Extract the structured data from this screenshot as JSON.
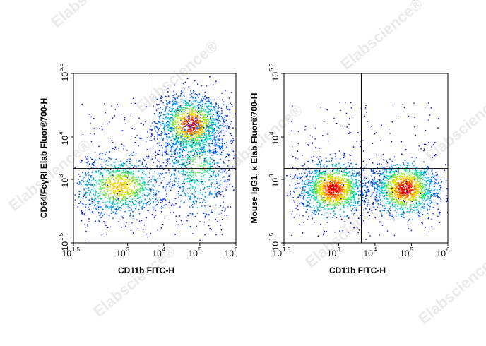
{
  "watermark": "Elabscience®",
  "chart_data": [
    {
      "type": "scatter",
      "subtype": "flow-cytometry-density-plot",
      "xlabel": "CD11b FITC-H",
      "ylabel": "CD64/FcγRI Elab Fluor®700-H",
      "x_scale": "log",
      "y_scale": "log",
      "xlim": [
        31.6,
        1000000
      ],
      "ylim": [
        31.6,
        316228
      ],
      "x_ticks": [
        {
          "base": "10",
          "exp": "1.5",
          "value": 31.6
        },
        {
          "base": "10",
          "exp": "3",
          "value": 1000
        },
        {
          "base": "10",
          "exp": "4",
          "value": 10000
        },
        {
          "base": "10",
          "exp": "5",
          "value": 100000
        },
        {
          "base": "10",
          "exp": "6",
          "value": 1000000
        }
      ],
      "y_ticks": [
        {
          "base": "10",
          "exp": "1.5",
          "value": 31.6
        },
        {
          "base": "10",
          "exp": "3",
          "value": 1000
        },
        {
          "base": "10",
          "exp": "4",
          "value": 10000
        },
        {
          "base": "10",
          "exp": "5.5",
          "value": 316228
        }
      ],
      "quadrant_gate": {
        "x": 4200,
        "y": 1800
      },
      "populations": [
        {
          "x": 600,
          "y": 700,
          "relative_density": "high"
        },
        {
          "x": 55000,
          "y": 20000,
          "relative_density": "very high"
        },
        {
          "x": 80000,
          "y": 2500,
          "relative_density": "medium"
        }
      ]
    },
    {
      "type": "scatter",
      "subtype": "flow-cytometry-density-plot",
      "xlabel": "CD11b FITC-H",
      "ylabel": "Mouse IgG1, κ Elab Fluor®700-H",
      "x_scale": "log",
      "y_scale": "log",
      "xlim": [
        31.6,
        1000000
      ],
      "ylim": [
        31.6,
        316228
      ],
      "x_ticks": [
        {
          "base": "10",
          "exp": "1.5",
          "value": 31.6
        },
        {
          "base": "10",
          "exp": "3",
          "value": 1000
        },
        {
          "base": "10",
          "exp": "4",
          "value": 10000
        },
        {
          "base": "10",
          "exp": "5",
          "value": 100000
        },
        {
          "base": "10",
          "exp": "6",
          "value": 1000000
        }
      ],
      "y_ticks": [
        {
          "base": "10",
          "exp": "1.5",
          "value": 31.6
        },
        {
          "base": "10",
          "exp": "3",
          "value": 1000
        },
        {
          "base": "10",
          "exp": "4",
          "value": 10000
        },
        {
          "base": "10",
          "exp": "5.5",
          "value": 316228
        }
      ],
      "quadrant_gate": {
        "x": 4200,
        "y": 1800
      },
      "populations": [
        {
          "x": 700,
          "y": 600,
          "relative_density": "very high"
        },
        {
          "x": 65000,
          "y": 620,
          "relative_density": "very high"
        }
      ]
    }
  ]
}
